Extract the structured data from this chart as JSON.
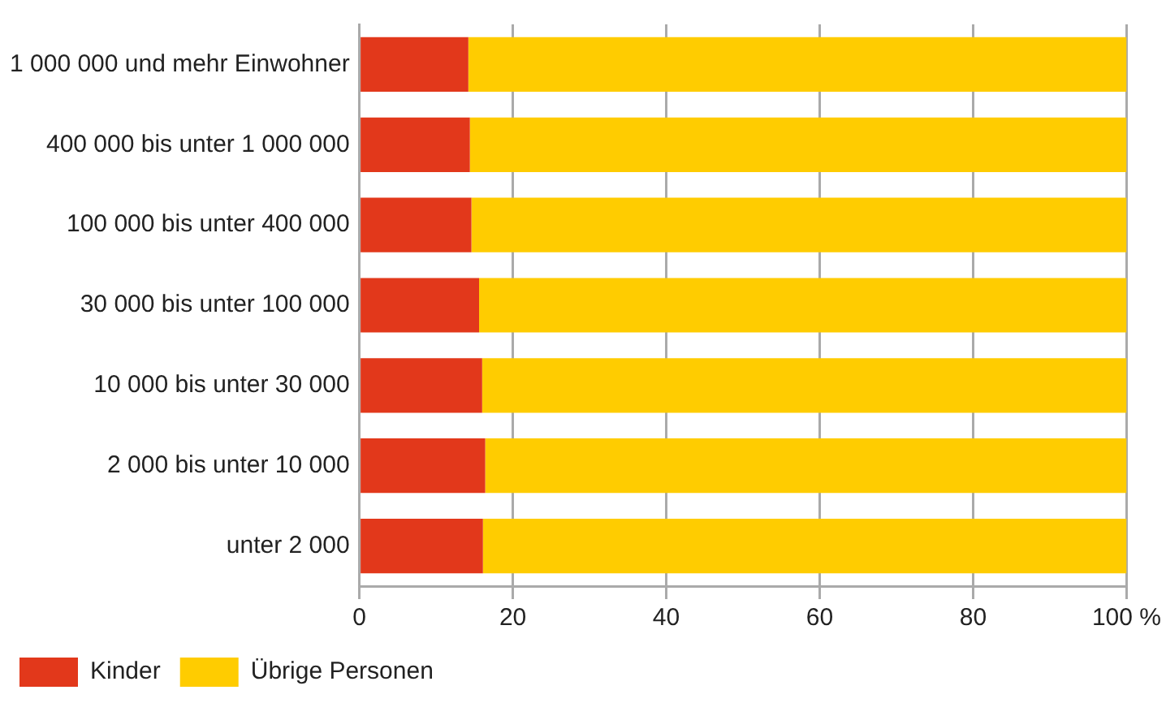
{
  "chart_data": {
    "type": "bar",
    "orientation": "horizontal",
    "stacked": true,
    "categories": [
      "1 000 000 und mehr Einwohner",
      "400 000 bis unter 1 000 000",
      "100 000 bis unter 400 000",
      "30 000 bis unter 100 000",
      "10 000 bis unter 30 000",
      "2 000 bis unter 10 000",
      "unter 2 000"
    ],
    "series": [
      {
        "name": "Kinder",
        "color": "#e2381b",
        "values": [
          14.2,
          14.4,
          14.6,
          15.6,
          16.0,
          16.4,
          16.1
        ]
      },
      {
        "name": "Übrige Personen",
        "color": "#ffcc00",
        "values": [
          85.8,
          85.6,
          85.4,
          84.4,
          84.0,
          83.6,
          83.9
        ]
      }
    ],
    "xlim": [
      0,
      100
    ],
    "xticks": [
      0,
      20,
      40,
      60,
      80,
      {
        "value": 100,
        "label": "100 %"
      }
    ],
    "grid": "x",
    "legend": "bottom"
  }
}
